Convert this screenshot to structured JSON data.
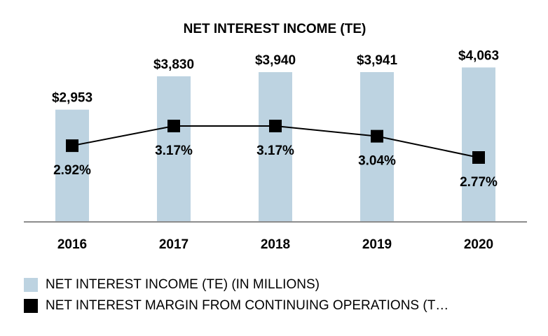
{
  "chart_data": {
    "type": "bar",
    "title": "NET INTEREST INCOME (TE)",
    "categories": [
      "2016",
      "2017",
      "2018",
      "2019",
      "2020"
    ],
    "series": [
      {
        "name": "NET INTEREST INCOME (TE) (IN MILLIONS)",
        "kind": "bar",
        "values": [
          2953,
          3830,
          3940,
          3941,
          4063
        ],
        "labels": [
          "$2,953",
          "$3,830",
          "$3,940",
          "$3,941",
          "$4,063"
        ],
        "ylim": [
          0,
          4500
        ]
      },
      {
        "name": "NET INTEREST MARGIN FROM CONTINUING OPERATIONS (T…",
        "kind": "line",
        "values": [
          2.92,
          3.17,
          3.17,
          3.04,
          2.77
        ],
        "labels": [
          "2.92%",
          "3.17%",
          "3.17%",
          "3.04%",
          "2.77%"
        ],
        "ylim": [
          1.83,
          4.03
        ]
      }
    ],
    "xlabel": "",
    "ylabel": "",
    "grid": false,
    "legend_position": "bottom-left",
    "colors": {
      "bar": "#bdd3e1",
      "line": "#000000",
      "marker": "#000000",
      "axis": "#8c8c8c"
    }
  }
}
